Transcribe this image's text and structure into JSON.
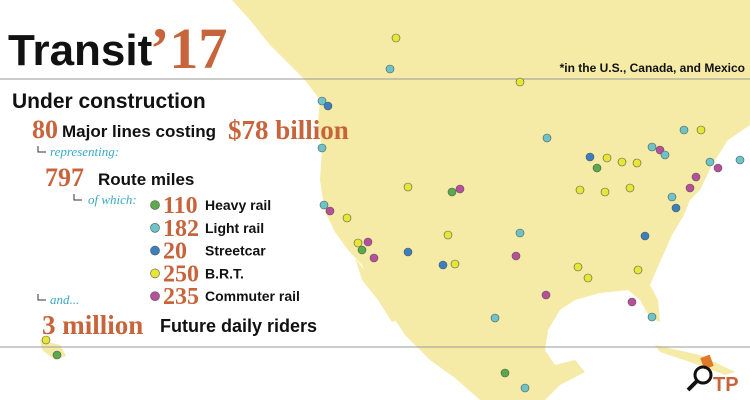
{
  "header": {
    "title": "Transit",
    "year": "’17",
    "note": "*in the U.S., Canada, and Mexico"
  },
  "summary": {
    "heading": "Under construction",
    "lines_count": 80,
    "lines_text": "Major lines costing",
    "cost": "$78 billion",
    "representing": "representing:",
    "miles_count": 797,
    "miles_text": "Route miles",
    "of_which": "of which:",
    "breakdown": [
      {
        "value": 110,
        "label": "Heavy rail",
        "color": "#5aaa4a"
      },
      {
        "value": 182,
        "label": "Light rail",
        "color": "#6cc4c9"
      },
      {
        "value": 20,
        "label": "Streetcar",
        "color": "#3b7fbf"
      },
      {
        "value": 250,
        "label": "B.R.T.",
        "color": "#e8e635"
      },
      {
        "value": 235,
        "label": "Commuter rail",
        "color": "#b84f9c"
      }
    ],
    "and": "and...",
    "riders_count": "3 million",
    "riders_text": "Future daily riders"
  },
  "logo": "TP"
}
